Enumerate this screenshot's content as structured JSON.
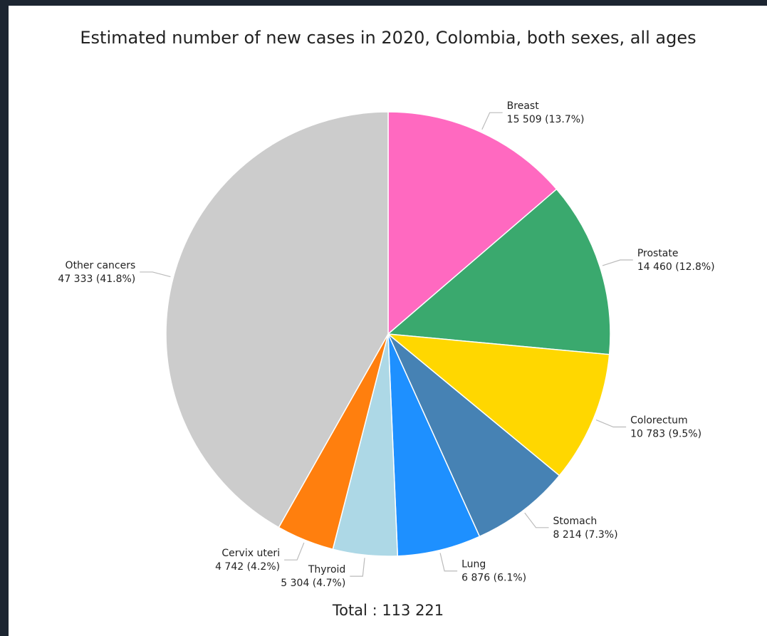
{
  "chart_data": {
    "type": "pie",
    "title": "Estimated number of new cases in 2020, Colombia, both sexes, all ages",
    "categories": [
      "Breast",
      "Prostate",
      "Colorectum",
      "Stomach",
      "Lung",
      "Thyroid",
      "Cervix uteri",
      "Other cancers"
    ],
    "values": [
      15509,
      14460,
      10783,
      8214,
      6876,
      5304,
      4742,
      47333
    ],
    "value_labels": [
      "15 509 (13.7%)",
      "14 460 (12.8%)",
      "10 783 (9.5%)",
      "8 214 (7.3%)",
      "6 876 (6.1%)",
      "5 304 (4.7%)",
      "4 742 (4.2%)",
      "47 333 (41.8%)"
    ],
    "colors": [
      "#ff69c0",
      "#3aa96e",
      "#ffd700",
      "#4682b4",
      "#1e90ff",
      "#add8e6",
      "#ff7f0e",
      "#cccccc"
    ],
    "total": "Total : 113 221"
  }
}
